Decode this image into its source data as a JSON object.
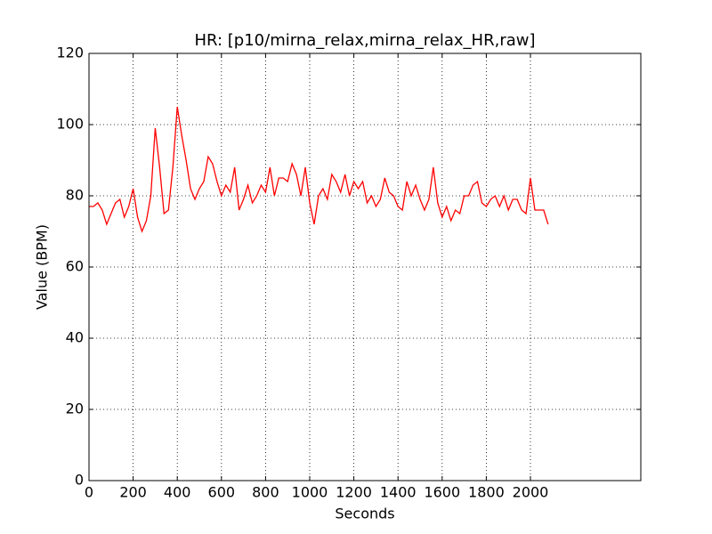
{
  "chart_data": {
    "type": "line",
    "title": "HR: [p10/mirna_relax,mirna_relax_HR,raw]",
    "x_label": "Seconds",
    "y_label": "Value (BPM)",
    "x": [
      0,
      20,
      40,
      60,
      80,
      100,
      120,
      140,
      160,
      180,
      200,
      220,
      240,
      260,
      280,
      300,
      320,
      340,
      360,
      380,
      400,
      420,
      440,
      460,
      480,
      500,
      520,
      540,
      560,
      580,
      600,
      620,
      640,
      660,
      680,
      700,
      720,
      740,
      760,
      780,
      800,
      820,
      840,
      860,
      880,
      900,
      920,
      940,
      960,
      980,
      1000,
      1020,
      1040,
      1060,
      1080,
      1100,
      1120,
      1140,
      1160,
      1180,
      1200,
      1220,
      1240,
      1260,
      1280,
      1300,
      1320,
      1340,
      1360,
      1380,
      1400,
      1420,
      1440,
      1460,
      1480,
      1500,
      1520,
      1540,
      1560,
      1580,
      1600,
      1620,
      1640,
      1660,
      1680,
      1700,
      1720,
      1740,
      1760,
      1780,
      1800,
      1820,
      1840,
      1860,
      1880,
      1900,
      1920,
      1940,
      1960,
      1980,
      2000,
      2020,
      2040,
      2060,
      2080
    ],
    "series": [
      {
        "color": "#ff0000",
        "values": [
          77,
          77,
          78,
          76,
          72,
          75,
          78,
          79,
          74,
          77,
          82,
          74,
          70,
          73,
          80,
          99,
          88,
          75,
          76,
          88,
          105,
          97,
          90,
          82,
          79,
          82,
          84,
          91,
          89,
          84,
          80,
          83,
          81,
          88,
          76,
          79,
          83,
          78,
          80,
          83,
          81,
          88,
          80,
          85,
          85,
          84,
          89,
          86,
          80,
          88,
          78,
          72,
          80,
          82,
          79,
          86,
          84,
          81,
          86,
          80,
          84,
          82,
          84,
          78,
          80,
          77,
          79,
          85,
          81,
          80,
          77,
          76,
          84,
          80,
          83,
          79,
          76,
          79,
          88,
          78,
          74,
          77,
          73,
          76,
          75,
          80,
          80,
          83,
          84,
          78,
          77,
          79,
          80,
          77,
          80,
          76,
          79,
          79,
          76,
          75,
          85,
          76,
          76,
          76,
          72
        ]
      }
    ],
    "xlim": [
      0,
      2500
    ],
    "ylim": [
      0,
      120
    ],
    "xticks": [
      0,
      200,
      400,
      600,
      800,
      1000,
      1200,
      1400,
      1600,
      1800,
      2000
    ],
    "yticks": [
      0,
      20,
      40,
      60,
      80,
      100,
      120
    ],
    "grid": true
  }
}
